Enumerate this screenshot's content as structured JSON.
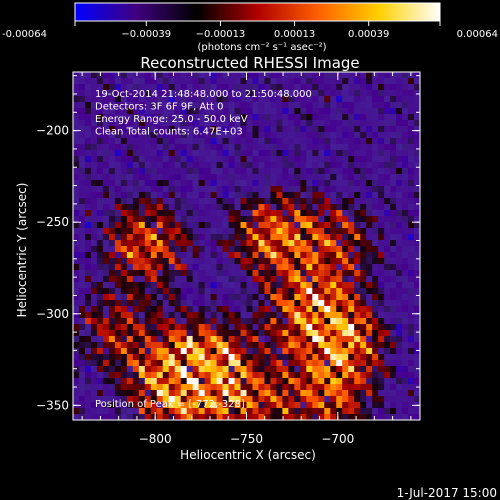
{
  "chart_data": {
    "type": "heatmap",
    "title": "Reconstructed RHESSI Image",
    "xlabel": "Heliocentric X (arcsec)",
    "ylabel": "Heliocentric Y (arcsec)",
    "xlim": [
      -845,
      -655
    ],
    "ylim": [
      -358,
      -168
    ],
    "x_ticks": [
      -800,
      -750,
      -700
    ],
    "y_ticks": [
      -350,
      -300,
      -250,
      -200
    ],
    "x_tick_labels": [
      "−800",
      "−750",
      "−700"
    ],
    "y_tick_labels": [
      "−350",
      "−300",
      "−250",
      "−200"
    ],
    "colorbar": {
      "range": [
        -0.00064,
        0.00064
      ],
      "ticks": [
        -0.00064,
        -0.00039,
        -0.00013,
        0.00013,
        0.00039,
        0.00064
      ],
      "tick_labels": [
        "-0.00064",
        "−0.00039",
        "−0.00013",
        "0.00013",
        "0.00039",
        "0.00064"
      ],
      "unit": "(photons cm⁻² s⁻¹ asec⁻²)",
      "colors": [
        "#0000ff",
        "#400080",
        "#000000",
        "#b00000",
        "#ff6000",
        "#ffd000",
        "#ffffff"
      ]
    },
    "annotations": [
      "19-Oct-2014 21:48:48.000 to 21:50:48.000",
      "Detectors: 3F 6F 9F, Att 0",
      "Energy Range: 25.0 - 50.0 keV",
      "Clean     Total counts: 6.47E+03"
    ],
    "peak_label": "Position of Peak = [-772,-328]",
    "peak_position": [
      -772,
      -328
    ],
    "bright_regions": [
      {
        "x": -772,
        "y": -328,
        "intensity": 1.0
      },
      {
        "x": -790,
        "y": -340,
        "intensity": 0.85
      },
      {
        "x": -715,
        "y": -300,
        "intensity": 0.8
      },
      {
        "x": -735,
        "y": -258,
        "intensity": 0.75
      },
      {
        "x": -805,
        "y": -262,
        "intensity": 0.7
      },
      {
        "x": -695,
        "y": -315,
        "intensity": 0.65
      },
      {
        "x": -705,
        "y": -345,
        "intensity": 0.6
      },
      {
        "x": -820,
        "y": -310,
        "intensity": 0.5
      },
      {
        "x": -745,
        "y": -350,
        "intensity": 0.55
      },
      {
        "x": -700,
        "y": -262,
        "intensity": 0.5
      }
    ]
  },
  "footer": {
    "timestamp": "1-Jul-2017 15:00"
  }
}
